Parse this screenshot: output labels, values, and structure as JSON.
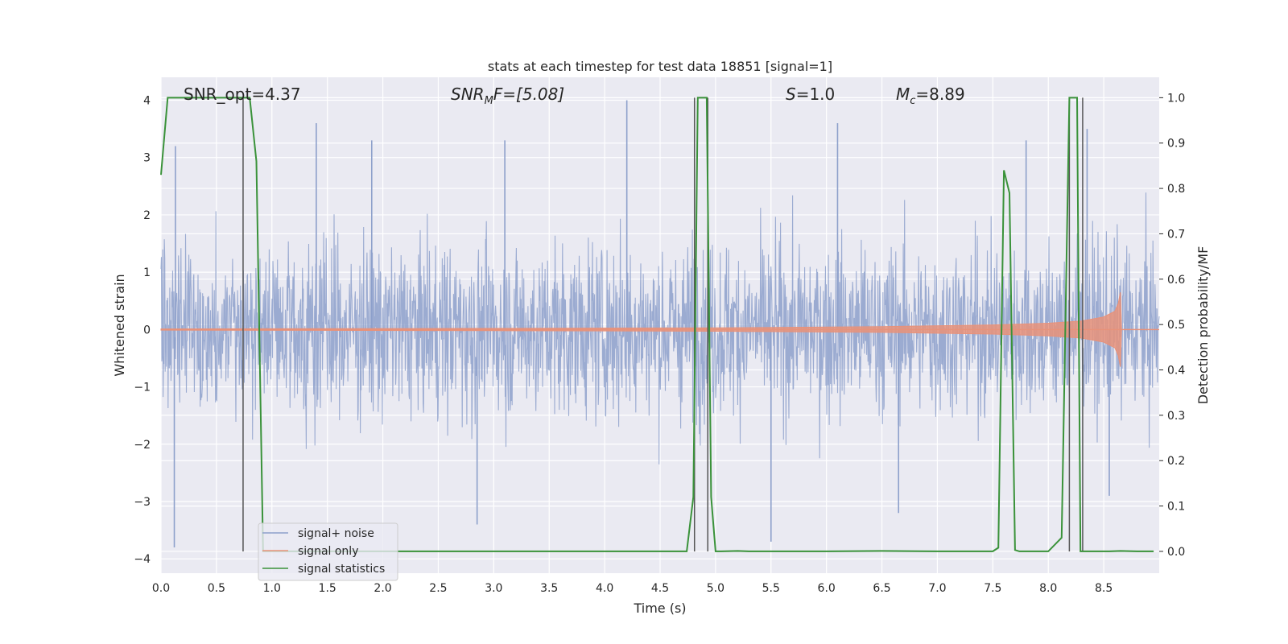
{
  "chart_data": {
    "type": "line",
    "title": "stats at each timestep for test data 18851 [signal=1]",
    "xlabel": "Time (s)",
    "ylabel": "Whitened strain",
    "ylabel_right": "Detection probability/MF",
    "xlim": [
      0.0,
      9.0
    ],
    "ylim": [
      -4.25,
      4.4
    ],
    "ylim_right": [
      -0.048,
      1.045
    ],
    "x_ticks": [
      "0.0",
      "0.5",
      "1.0",
      "1.5",
      "2.0",
      "2.5",
      "3.0",
      "3.5",
      "4.0",
      "4.5",
      "5.0",
      "5.5",
      "6.0",
      "6.5",
      "7.0",
      "7.5",
      "8.0",
      "8.5"
    ],
    "y_ticks": [
      "4",
      "3",
      "2",
      "1",
      "0",
      "−1",
      "−2",
      "−3",
      "−4"
    ],
    "y_ticks_right": [
      "1.0",
      "0.9",
      "0.8",
      "0.7",
      "0.6",
      "0.5",
      "0.4",
      "0.3",
      "0.2",
      "0.1",
      "0.0"
    ],
    "grid": true,
    "legend_position": "lower-left",
    "annotations": {
      "snr_opt": "SNR_opt=4.37",
      "snr_mf": {
        "base": "SNR",
        "sub": "M",
        "rest": "F=[5.08]"
      },
      "s": {
        "base": "S",
        "rest": "=1.0"
      },
      "mc": {
        "base": "M",
        "sub": "c",
        "rest": "=8.89"
      }
    },
    "series": [
      {
        "name": "signal+ noise",
        "color": "#8da0cb",
        "axis": "left",
        "description_values": {
          "typical_abs_max": 2.5,
          "samples": 8192,
          "spikes": [
            [
              0.12,
              -3.8
            ],
            [
              0.13,
              3.2
            ],
            [
              1.4,
              3.6
            ],
            [
              1.9,
              3.3
            ],
            [
              2.85,
              -3.4
            ],
            [
              3.1,
              3.3
            ],
            [
              4.2,
              4.0
            ],
            [
              5.5,
              -3.7
            ],
            [
              6.1,
              3.6
            ],
            [
              6.65,
              -3.2
            ],
            [
              7.8,
              3.3
            ],
            [
              8.35,
              3.5
            ],
            [
              8.55,
              -2.9
            ]
          ]
        }
      },
      {
        "name": "signal only",
        "color": "#e8927a",
        "axis": "left",
        "envelope": {
          "x": [
            0.0,
            3.0,
            5.0,
            6.5,
            7.5,
            8.0,
            8.3,
            8.5,
            8.6,
            8.63,
            8.65,
            8.66
          ],
          "amp": [
            0.01,
            0.02,
            0.03,
            0.05,
            0.08,
            0.11,
            0.15,
            0.22,
            0.32,
            0.45,
            0.65,
            0.0
          ]
        }
      },
      {
        "name": "signal statistics",
        "color": "#3a923a",
        "axis": "right",
        "x": [
          0.0,
          0.06,
          0.1,
          0.2,
          0.3,
          0.4,
          0.5,
          0.6,
          0.7,
          0.75,
          0.8,
          0.86,
          0.92,
          1.0,
          1.5,
          2.0,
          2.5,
          3.0,
          3.5,
          4.0,
          4.5,
          4.74,
          4.8,
          4.84,
          4.87,
          4.92,
          4.96,
          5.0,
          5.05,
          5.2,
          5.3,
          5.5,
          6.0,
          6.5,
          7.0,
          7.5,
          7.55,
          7.6,
          7.65,
          7.7,
          7.74,
          7.8,
          7.9,
          8.0,
          8.12,
          8.19,
          8.22,
          8.26,
          8.29,
          8.32,
          8.36,
          8.45,
          8.55,
          8.65,
          8.8,
          8.95
        ],
        "values": [
          0.83,
          1.0,
          1.0,
          1.0,
          1.0,
          1.0,
          1.0,
          1.0,
          1.0,
          1.0,
          1.0,
          0.86,
          0.0,
          0.0,
          0.0,
          0.0,
          0.0,
          0.0,
          0.0,
          0.0,
          0.0,
          0.0,
          0.12,
          1.0,
          1.0,
          1.0,
          0.12,
          0.0,
          0.0,
          0.001,
          0.0,
          0.0,
          0.0,
          0.001,
          0.0,
          0.0,
          0.008,
          0.84,
          0.79,
          0.003,
          0.0,
          0.0,
          0.0,
          0.0,
          0.03,
          1.0,
          1.0,
          1.0,
          0.0,
          0.0,
          0.0,
          0.0,
          0.0,
          0.001,
          0.0,
          0.0
        ]
      }
    ],
    "vertical_lines": [
      0.74,
      4.81,
      4.93,
      8.19,
      8.31
    ]
  }
}
